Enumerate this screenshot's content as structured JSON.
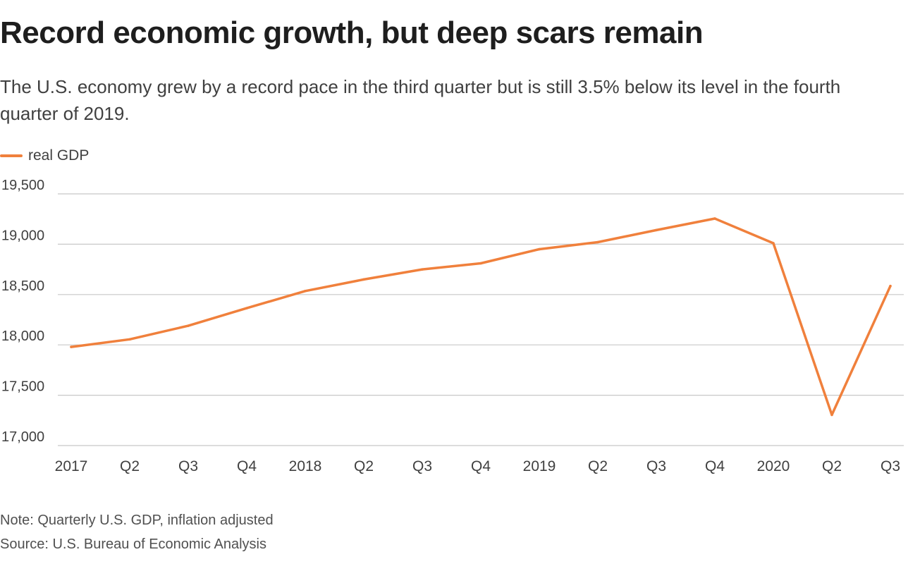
{
  "colors": {
    "line": "#f0803c",
    "grid": "#c8c8c8"
  },
  "chart_data": {
    "type": "line",
    "title": "Record economic growth, but deep scars remain",
    "subtitle": "The U.S. economy grew by a record pace in the third quarter but is still 3.5% below its level in the fourth quarter of 2019.",
    "xlabel": "",
    "ylabel": "",
    "categories": [
      "2017",
      "Q2",
      "Q3",
      "Q4",
      "2018",
      "Q2",
      "Q3",
      "Q4",
      "2019",
      "Q2",
      "Q3",
      "Q4",
      "2020",
      "Q2",
      "Q3"
    ],
    "series": [
      {
        "name": "real GDP",
        "values": [
          17980,
          18055,
          18190,
          18365,
          18535,
          18650,
          18750,
          18810,
          18950,
          19020,
          19140,
          19255,
          19010,
          17305,
          18585
        ]
      }
    ],
    "ylim": [
      17000,
      19500
    ],
    "yticks": [
      17000,
      17500,
      18000,
      18500,
      19000,
      19500
    ],
    "ytick_labels": [
      "17,000",
      "17,500",
      "18,000",
      "18,500",
      "19,000",
      "19,500"
    ],
    "grid": true,
    "legend_position": "top-left",
    "note": "Note: Quarterly U.S. GDP, inflation adjusted",
    "source": "Source: U.S. Bureau of Economic Analysis"
  }
}
